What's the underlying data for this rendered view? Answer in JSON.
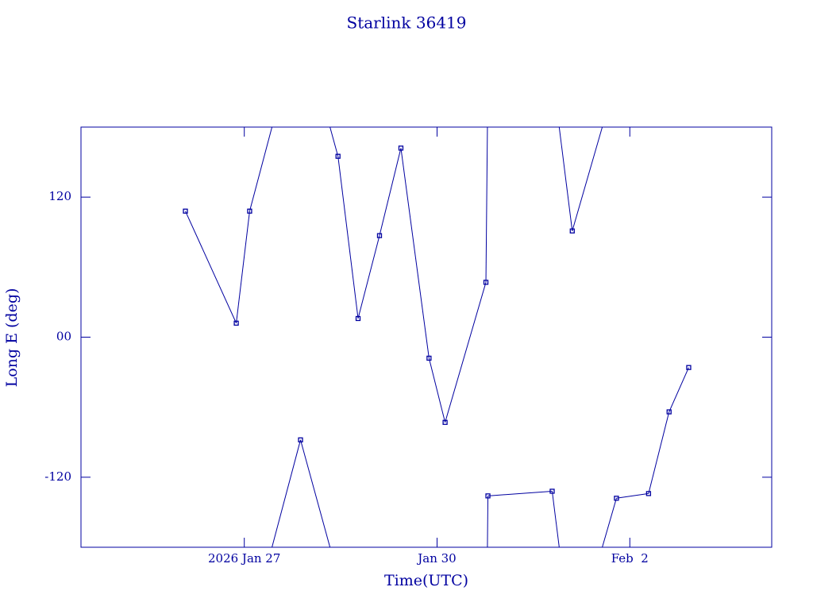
{
  "chart_data": {
    "type": "line",
    "title": "Starlink 36419",
    "x_label": "Time(UTC)",
    "y_label": "Long E (deg)",
    "x": [
      "2026-01-26T02:00",
      "2026-01-26T21:00",
      "2026-01-27T02:00",
      "2026-01-27T21:00",
      "2026-01-28T11:00",
      "2026-01-28T18:30",
      "2026-01-29T02:30",
      "2026-01-29T10:30",
      "2026-01-29T21:00",
      "2026-01-30T03:00",
      "2026-01-30T18:15",
      "2026-01-30T19:00",
      "2026-01-31T19:00",
      "2026-02-01T02:30",
      "2026-02-01T19:00",
      "2026-02-02T07:00",
      "2026-02-02T14:40",
      "2026-02-02T22:00"
    ],
    "series": [
      {
        "color": "#0000a0",
        "values": [
          108,
          12,
          108,
          -88,
          155,
          16,
          87,
          162,
          -18,
          -73,
          47,
          -136,
          -132,
          91,
          -138,
          -134,
          -64,
          -26
        ]
      }
    ],
    "xlim": [
      "2026-01-24T11:00",
      "2026-02-04T05:00"
    ],
    "xticks": [
      {
        "value": "2026-01-27T00:00",
        "label": "2026 Jan 27"
      },
      {
        "value": "2026-01-30T00:00",
        "label": "Jan 30"
      },
      {
        "value": "2026-02-02T00:00",
        "label": "Feb  2"
      }
    ],
    "ylim": [
      -180,
      180
    ],
    "yticks": [
      -120,
      {
        "value": 0,
        "label": "00"
      },
      120
    ],
    "wrap": true
  }
}
